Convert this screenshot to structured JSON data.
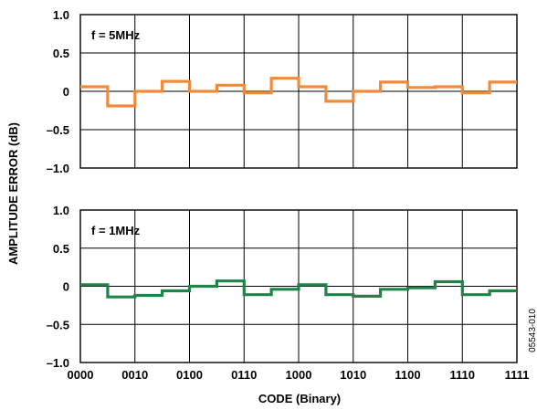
{
  "chart_data": [
    {
      "type": "line",
      "step": true,
      "panel_label": "f = 5MHz",
      "series": [
        {
          "color": "#F28A3B",
          "x": [
            0,
            1,
            2,
            3,
            4,
            5,
            6,
            7,
            8,
            9,
            10,
            11,
            12,
            13,
            14,
            15,
            16
          ],
          "y": [
            0.06,
            -0.19,
            0.0,
            0.13,
            0.0,
            0.08,
            -0.02,
            0.17,
            0.06,
            -0.13,
            0.0,
            0.12,
            0.05,
            0.06,
            -0.02,
            0.12,
            0.12
          ]
        }
      ],
      "ylim": [
        -1.0,
        1.0
      ],
      "yticks": [
        "1.0",
        "0.5",
        "0",
        "–0.5",
        "–1.0"
      ],
      "grid": true
    },
    {
      "type": "line",
      "step": true,
      "panel_label": "f = 1MHz",
      "series": [
        {
          "color": "#1E8449",
          "x": [
            0,
            1,
            2,
            3,
            4,
            5,
            6,
            7,
            8,
            9,
            10,
            11,
            12,
            13,
            14,
            15,
            16
          ],
          "y": [
            0.02,
            -0.14,
            -0.12,
            -0.06,
            0.0,
            0.07,
            -0.11,
            -0.04,
            0.02,
            -0.11,
            -0.13,
            -0.04,
            -0.02,
            0.06,
            -0.11,
            -0.06,
            -0.06
          ]
        }
      ],
      "ylim": [
        -1.0,
        1.0
      ],
      "yticks": [
        "1.0",
        "0.5",
        "0",
        "–0.5",
        "–1.0"
      ],
      "grid": true,
      "xticks": [
        "0000",
        "0010",
        "0100",
        "0110",
        "1000",
        "1010",
        "1100",
        "1110",
        "1111"
      ]
    }
  ],
  "labels": {
    "xlabel": "CODE (Binary)",
    "ylabel": "AMPLITUDE ERROR (dB)",
    "figure_id": "05543-010"
  }
}
